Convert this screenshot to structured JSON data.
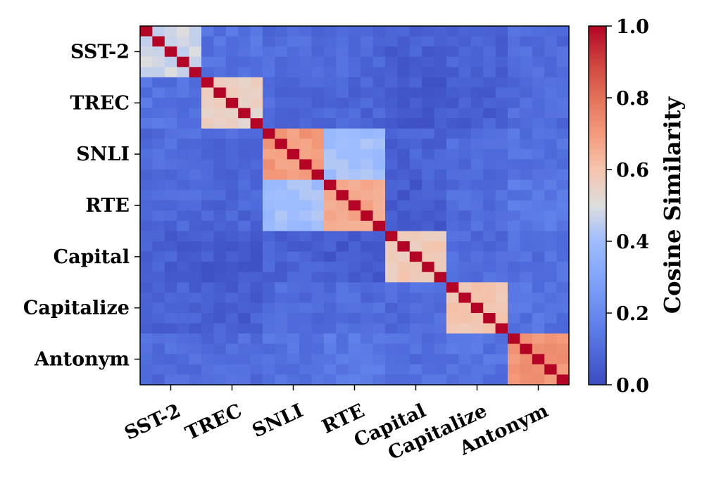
{
  "chart_data": {
    "type": "heatmap",
    "title": "",
    "xlabel": "",
    "ylabel": "",
    "tasks": [
      "SST-2",
      "TREC",
      "SNLI",
      "RTE",
      "Capital",
      "Capitalize",
      "Antonym"
    ],
    "cells_per_task": 5,
    "within_task_similarity": [
      0.48,
      0.55,
      0.7,
      0.67,
      0.57,
      0.6,
      0.71
    ],
    "diagonal_value": 1.0,
    "cross_task_similarity": [
      [
        null,
        0.12,
        0.1,
        0.09,
        0.06,
        0.07,
        0.1
      ],
      [
        0.12,
        null,
        0.09,
        0.08,
        0.05,
        0.06,
        0.1
      ],
      [
        0.1,
        0.09,
        null,
        0.4,
        0.07,
        0.1,
        0.12
      ],
      [
        0.09,
        0.08,
        0.4,
        null,
        0.05,
        0.1,
        0.14
      ],
      [
        0.06,
        0.05,
        0.07,
        0.05,
        null,
        0.1,
        0.11
      ],
      [
        0.07,
        0.06,
        0.1,
        0.1,
        0.1,
        null,
        0.12
      ],
      [
        0.1,
        0.1,
        0.12,
        0.14,
        0.11,
        0.12,
        null
      ]
    ],
    "colorbar": {
      "label": "Cosine Similarity",
      "colormap": "coolwarm",
      "range": [
        0.0,
        1.0
      ],
      "ticks": [
        "0.0",
        "0.2",
        "0.4",
        "0.6",
        "0.8",
        "1.0"
      ]
    }
  }
}
